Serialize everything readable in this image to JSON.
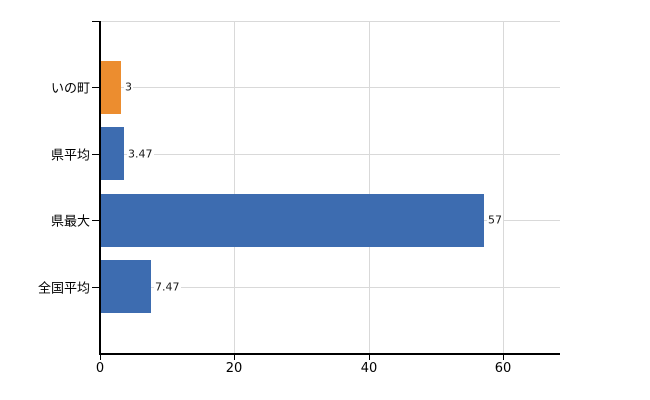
{
  "chart_data": {
    "type": "bar",
    "orientation": "horizontal",
    "title": "",
    "categories": [
      "いの町",
      "県平均",
      "県最大",
      "全国平均"
    ],
    "values": [
      3,
      3.47,
      57,
      7.47
    ],
    "value_labels": [
      "3",
      "3.47",
      "57",
      "7.47"
    ],
    "bar_colors": [
      "#EC8D2F",
      "#3D6CB0",
      "#3D6CB0",
      "#3D6CB0"
    ],
    "xlim": [
      0,
      68.5
    ],
    "x_ticks": [
      0,
      20,
      40,
      60
    ],
    "x_tick_labels": [
      "0",
      "20",
      "40",
      "60"
    ],
    "ylabel": "",
    "xlabel": "",
    "grid": true,
    "legend": false
  },
  "colors": {
    "background": "#ffffff",
    "axis": "#000000",
    "gridline": "#d9d9d9",
    "text": "#000000",
    "bar_orange": "#EC8D2F",
    "bar_blue": "#3D6CB0"
  }
}
